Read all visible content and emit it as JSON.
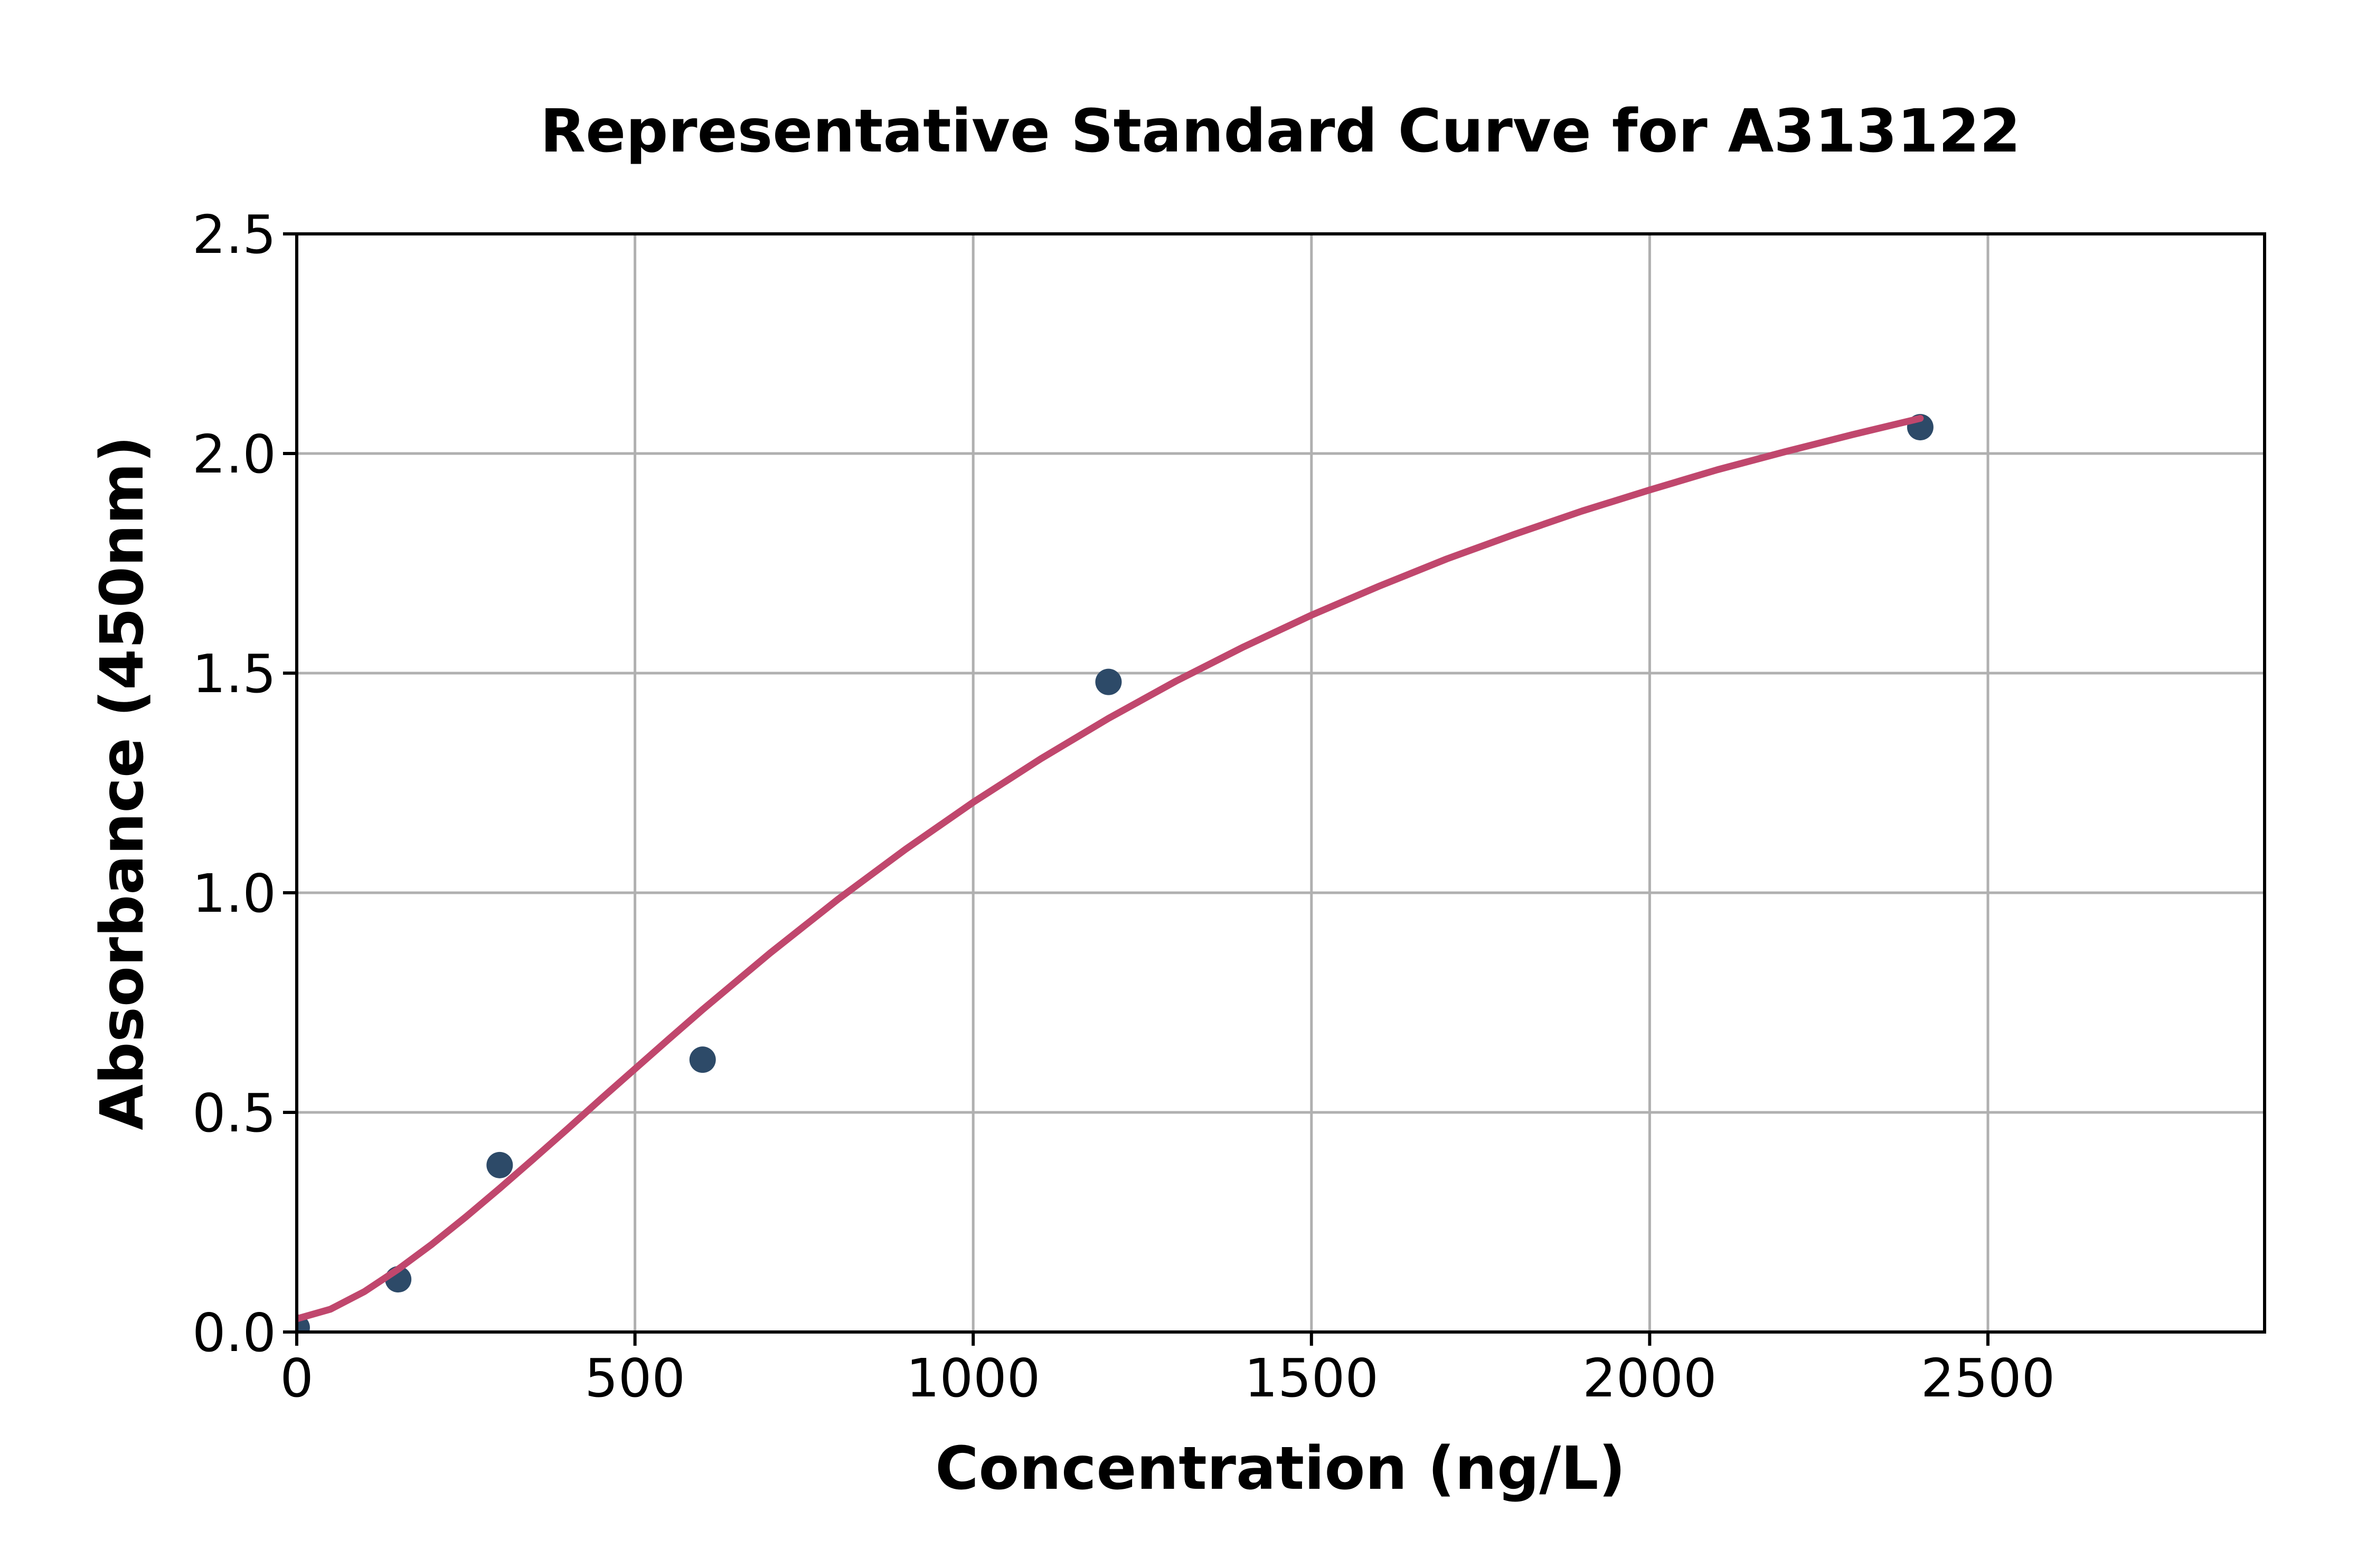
{
  "page": {
    "background": "#ffffff"
  },
  "chart_data": {
    "type": "scatter",
    "title": "Representative Standard Curve for A313122",
    "xlabel": "Concentration (ng/L)",
    "ylabel": "Absorbance (450nm)",
    "xlim": [
      0,
      2909
    ],
    "ylim": [
      0,
      2.5
    ],
    "x_ticks": [
      0,
      500,
      1000,
      1500,
      2000,
      2500
    ],
    "x_tick_labels": [
      "0",
      "500",
      "1000",
      "1500",
      "2000",
      "2500"
    ],
    "y_ticks": [
      0,
      0.5,
      1.0,
      1.5,
      2.0,
      2.5
    ],
    "y_tick_labels": [
      "0.0",
      "0.5",
      "1.0",
      "1.5",
      "2.0",
      "2.5"
    ],
    "grid": true,
    "legend_position": "none",
    "colors": {
      "point_color": "#2d4a68",
      "curve_color": "#c0476d",
      "grid_color": "#b0b0b0",
      "axis_color": "#000000"
    },
    "series": [
      {
        "name": "standard-points",
        "type": "scatter",
        "color": "#2d4a68",
        "x": [
          0,
          150,
          300,
          600,
          1200,
          2400
        ],
        "y": [
          0.01,
          0.12,
          0.38,
          0.62,
          1.48,
          2.06
        ]
      },
      {
        "name": "fitted-curve",
        "type": "line",
        "color": "#c0476d",
        "x": [
          0,
          50,
          100,
          150,
          200,
          250,
          300,
          350,
          400,
          450,
          500,
          550,
          600,
          700,
          800,
          900,
          1000,
          1100,
          1200,
          1300,
          1400,
          1500,
          1600,
          1700,
          1800,
          1900,
          2000,
          2100,
          2200,
          2300,
          2400
        ],
        "y": [
          0.03,
          0.052,
          0.092,
          0.143,
          0.2,
          0.262,
          0.327,
          0.394,
          0.462,
          0.531,
          0.599,
          0.667,
          0.734,
          0.863,
          0.985,
          1.099,
          1.206,
          1.305,
          1.397,
          1.482,
          1.56,
          1.632,
          1.698,
          1.76,
          1.816,
          1.869,
          1.917,
          1.963,
          2.004,
          2.043,
          2.08
        ]
      }
    ]
  }
}
